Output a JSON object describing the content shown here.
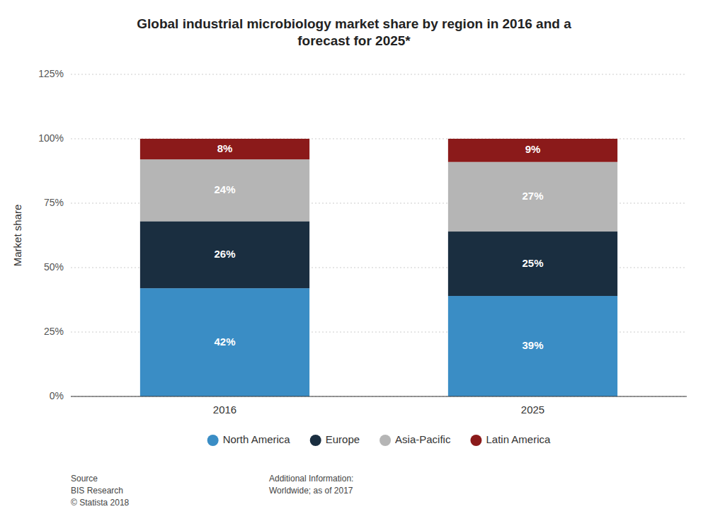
{
  "chart_data": {
    "type": "bar",
    "stacked": true,
    "title": "Global industrial microbiology market share by region in 2016 and a\nforecast for 2025*",
    "y_label": "Market share",
    "categories": [
      "2016",
      "2025"
    ],
    "series": [
      {
        "name": "North America",
        "color": "#3a8dc5",
        "values": [
          42,
          39
        ],
        "value_labels": [
          "42%",
          "39%"
        ]
      },
      {
        "name": "Europe",
        "color": "#1a2e40",
        "values": [
          26,
          25
        ],
        "value_labels": [
          "26%",
          "25%"
        ]
      },
      {
        "name": "Asia-Pacific",
        "color": "#b5b5b5",
        "values": [
          24,
          27
        ],
        "value_labels": [
          "24%",
          "27%"
        ]
      },
      {
        "name": "Latin America",
        "color": "#8b1a1a",
        "values": [
          8,
          9
        ],
        "value_labels": [
          "8%",
          "9%"
        ]
      }
    ],
    "ylim": [
      0,
      125
    ],
    "yticks": [
      {
        "value": 0,
        "label": "0%"
      },
      {
        "value": 25,
        "label": "25%"
      },
      {
        "value": 50,
        "label": "50%"
      },
      {
        "value": 75,
        "label": "75%"
      },
      {
        "value": 100,
        "label": "100%"
      },
      {
        "value": 125,
        "label": "125%"
      }
    ],
    "grid": true,
    "data_labels": true,
    "legend": "bottom",
    "annotations": [
      "Source\nBIS Research\n© Statista 2018",
      "Additional Information:\nWorldwide; as of 2017"
    ]
  }
}
